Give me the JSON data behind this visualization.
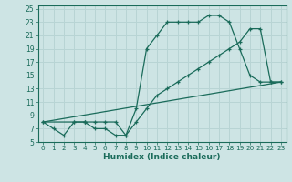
{
  "xlabel": "Humidex (Indice chaleur)",
  "bg_color": "#cde4e4",
  "grid_color": "#b8d4d4",
  "line_color": "#1a6b5a",
  "xlim": [
    -0.5,
    23.5
  ],
  "ylim": [
    5,
    25.5
  ],
  "xticks": [
    0,
    1,
    2,
    3,
    4,
    5,
    6,
    7,
    8,
    9,
    10,
    11,
    12,
    13,
    14,
    15,
    16,
    17,
    18,
    19,
    20,
    21,
    22,
    23
  ],
  "yticks": [
    5,
    7,
    9,
    11,
    13,
    15,
    17,
    19,
    21,
    23,
    25
  ],
  "line1_x": [
    0,
    1,
    2,
    3,
    4,
    4,
    5,
    6,
    7,
    8,
    9,
    10,
    11,
    12,
    13,
    14,
    15,
    16,
    17,
    18,
    19,
    20,
    21,
    22,
    23
  ],
  "line1_y": [
    8,
    7,
    6,
    8,
    8,
    8,
    7,
    7,
    6,
    6,
    10,
    19,
    21,
    23,
    23,
    23,
    23,
    24,
    24,
    23,
    19,
    15,
    14,
    14,
    14
  ],
  "line2_x": [
    0,
    3,
    4,
    5,
    6,
    7,
    8,
    9,
    10,
    11,
    12,
    13,
    14,
    15,
    16,
    17,
    18,
    19,
    20,
    21,
    22,
    23
  ],
  "line2_y": [
    8,
    8,
    8,
    8,
    8,
    8,
    6,
    8,
    10,
    12,
    13,
    14,
    15,
    16,
    17,
    18,
    19,
    20,
    22,
    22,
    14,
    14
  ],
  "line3_x": [
    0,
    23
  ],
  "line3_y": [
    8,
    14
  ],
  "xtick_fontsize": 5.2,
  "ytick_fontsize": 5.5,
  "xlabel_fontsize": 6.5
}
